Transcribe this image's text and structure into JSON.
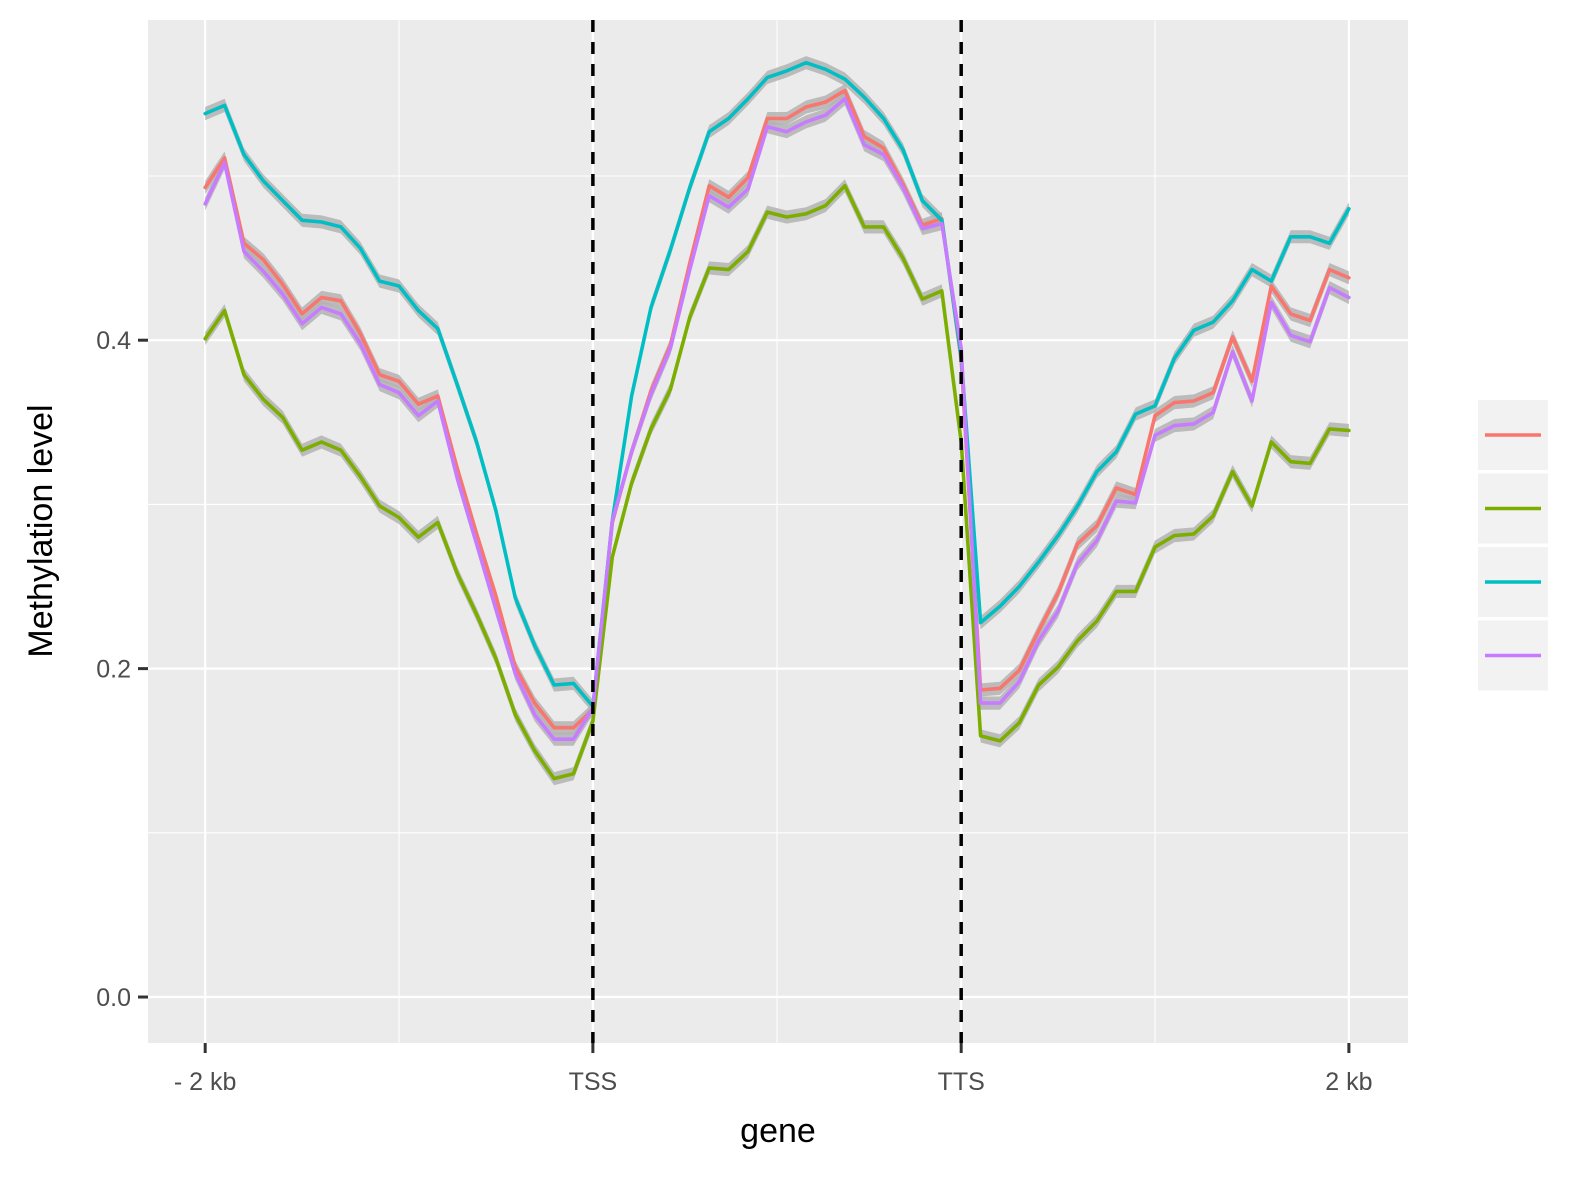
{
  "chart_data": {
    "type": "line",
    "title": "",
    "xlabel": "gene",
    "ylabel": "Methylation level",
    "x_ticks": [
      {
        "pos": 1,
        "label": "- 2 kb"
      },
      {
        "pos": 21,
        "label": "TSS"
      },
      {
        "pos": 40,
        "label": "TTS"
      },
      {
        "pos": 60,
        "label": "2 kb"
      }
    ],
    "y_ticks": [
      0.0,
      0.2,
      0.4
    ],
    "y_tick_labels": [
      "0.0",
      "0.2",
      "0.4"
    ],
    "xlim": [
      -1.95,
      63.05
    ],
    "ylim": [
      -0.028,
      0.595
    ],
    "vlines": [
      21,
      40
    ],
    "vline_style": "dashed",
    "grid": true,
    "legend_placement": "right",
    "ribbon_color": "#b3b3b3",
    "panel_background": "#ebebeb",
    "x": [
      1,
      2,
      3,
      4,
      5,
      6,
      7,
      8,
      9,
      10,
      11,
      12,
      13,
      14,
      15,
      16,
      17,
      18,
      19,
      20,
      21,
      22,
      23,
      24,
      25,
      26,
      27,
      28,
      29,
      30,
      31,
      32,
      33,
      34,
      35,
      36,
      37,
      38,
      39,
      40,
      41,
      42,
      43,
      44,
      45,
      46,
      47,
      48,
      49,
      50,
      51,
      52,
      53,
      54,
      55,
      56,
      57,
      58,
      59,
      60
    ],
    "series": [
      {
        "color": "#F8766D",
        "values": [
          0.493,
          0.511,
          0.459,
          0.449,
          0.434,
          0.416,
          0.426,
          0.424,
          0.404,
          0.379,
          0.375,
          0.361,
          0.366,
          0.322,
          0.282,
          0.244,
          0.201,
          0.179,
          0.164,
          0.164,
          0.175,
          0.289,
          0.332,
          0.369,
          0.397,
          0.447,
          0.494,
          0.487,
          0.499,
          0.535,
          0.535,
          0.542,
          0.545,
          0.552,
          0.524,
          0.517,
          0.495,
          0.47,
          0.474,
          0.388,
          0.187,
          0.188,
          0.199,
          0.223,
          0.246,
          0.276,
          0.287,
          0.31,
          0.306,
          0.354,
          0.362,
          0.363,
          0.368,
          0.402,
          0.375,
          0.433,
          0.416,
          0.412,
          0.443,
          0.438
        ]
      },
      {
        "color": "#7CAE00",
        "values": [
          0.401,
          0.418,
          0.379,
          0.364,
          0.353,
          0.333,
          0.338,
          0.333,
          0.317,
          0.299,
          0.292,
          0.28,
          0.289,
          0.258,
          0.233,
          0.206,
          0.172,
          0.15,
          0.133,
          0.136,
          0.168,
          0.268,
          0.313,
          0.346,
          0.37,
          0.414,
          0.444,
          0.443,
          0.454,
          0.478,
          0.475,
          0.477,
          0.482,
          0.494,
          0.469,
          0.469,
          0.45,
          0.425,
          0.43,
          0.338,
          0.159,
          0.156,
          0.167,
          0.19,
          0.201,
          0.217,
          0.229,
          0.247,
          0.247,
          0.274,
          0.281,
          0.282,
          0.293,
          0.32,
          0.299,
          0.338,
          0.326,
          0.325,
          0.346,
          0.345
        ]
      },
      {
        "color": "#00BFC4",
        "values": [
          0.538,
          0.543,
          0.513,
          0.497,
          0.485,
          0.473,
          0.472,
          0.469,
          0.456,
          0.436,
          0.433,
          0.418,
          0.407,
          0.373,
          0.338,
          0.296,
          0.243,
          0.214,
          0.19,
          0.191,
          0.177,
          0.29,
          0.366,
          0.42,
          0.455,
          0.493,
          0.527,
          0.535,
          0.547,
          0.56,
          0.564,
          0.569,
          0.565,
          0.559,
          0.548,
          0.535,
          0.516,
          0.485,
          0.473,
          0.39,
          0.228,
          0.238,
          0.25,
          0.265,
          0.281,
          0.299,
          0.32,
          0.332,
          0.355,
          0.36,
          0.389,
          0.406,
          0.411,
          0.424,
          0.443,
          0.436,
          0.463,
          0.463,
          0.459,
          0.48
        ]
      },
      {
        "color": "#C77CFF",
        "values": [
          0.483,
          0.508,
          0.454,
          0.442,
          0.428,
          0.41,
          0.42,
          0.416,
          0.398,
          0.373,
          0.368,
          0.354,
          0.363,
          0.316,
          0.276,
          0.236,
          0.197,
          0.172,
          0.157,
          0.157,
          0.176,
          0.29,
          0.332,
          0.367,
          0.395,
          0.443,
          0.488,
          0.481,
          0.492,
          0.53,
          0.527,
          0.533,
          0.537,
          0.547,
          0.519,
          0.513,
          0.493,
          0.468,
          0.471,
          0.395,
          0.179,
          0.179,
          0.192,
          0.217,
          0.235,
          0.264,
          0.278,
          0.302,
          0.301,
          0.342,
          0.348,
          0.349,
          0.356,
          0.393,
          0.363,
          0.423,
          0.403,
          0.399,
          0.432,
          0.426
        ]
      }
    ]
  }
}
